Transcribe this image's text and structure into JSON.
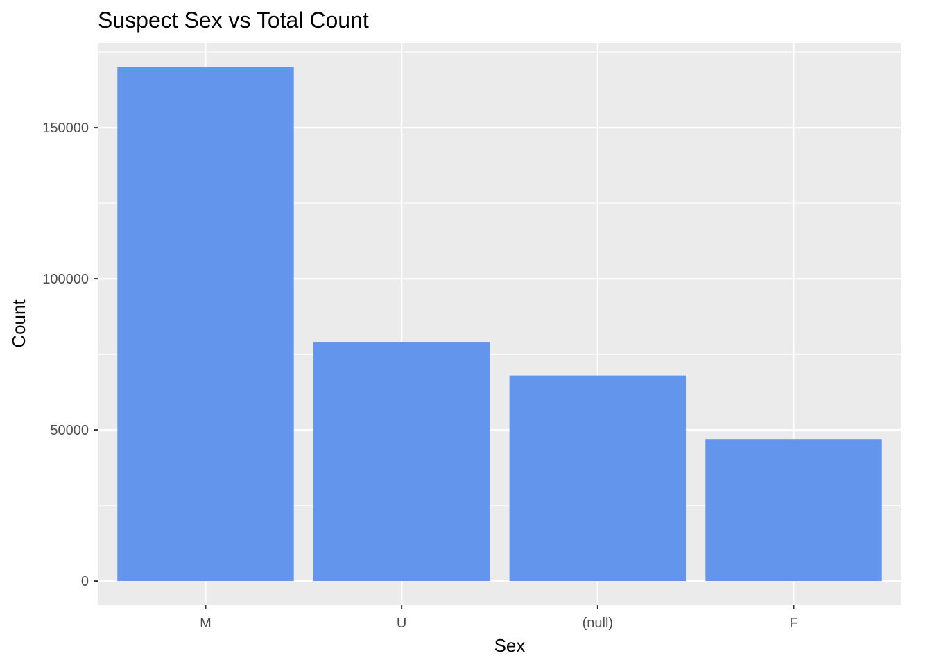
{
  "chart_data": {
    "type": "bar",
    "title": "Suspect Sex vs Total Count",
    "xlabel": "Sex",
    "ylabel": "Count",
    "categories": [
      "M",
      "U",
      "(null)",
      "F"
    ],
    "values": [
      170000,
      79000,
      68000,
      47000
    ],
    "ylim": [
      -8000,
      178000
    ],
    "yticks": [
      0,
      50000,
      100000,
      150000
    ],
    "ytick_labels": [
      "0",
      "50000",
      "100000",
      "150000"
    ],
    "grid": true,
    "legend": "none",
    "colors": {
      "bar": "#6495ED",
      "panel": "#EBEBEB",
      "grid": "#FFFFFF",
      "text": "#000000",
      "tick_text": "#4D4D4D",
      "tick": "#333333"
    }
  }
}
